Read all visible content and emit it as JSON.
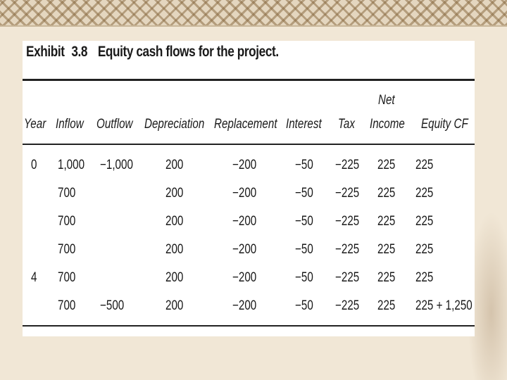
{
  "exhibit": {
    "label": "Exhibit",
    "number": "3.8",
    "title": "Equity cash flows for the project."
  },
  "table": {
    "headers": {
      "year": "Year",
      "inflow": "Inflow",
      "outflow": "Outflow",
      "depreciation": "Depreciation",
      "replacement": "Replacement",
      "interest": "Interest",
      "tax": "Tax",
      "net_top": "Net",
      "net_bottom": "Income",
      "equity_cf": "Equity CF"
    },
    "rows": [
      {
        "year": "0",
        "inflow": "1,000",
        "outflow": "−1,000",
        "depreciation": "200",
        "replacement": "−200",
        "interest": "−50",
        "tax": "−225",
        "net_income": "225",
        "equity_cf": "225"
      },
      {
        "year": "",
        "inflow": "700",
        "outflow": "",
        "depreciation": "200",
        "replacement": "−200",
        "interest": "−50",
        "tax": "−225",
        "net_income": "225",
        "equity_cf": "225"
      },
      {
        "year": "",
        "inflow": "700",
        "outflow": "",
        "depreciation": "200",
        "replacement": "−200",
        "interest": "−50",
        "tax": "−225",
        "net_income": "225",
        "equity_cf": "225"
      },
      {
        "year": "",
        "inflow": "700",
        "outflow": "",
        "depreciation": "200",
        "replacement": "−200",
        "interest": "−50",
        "tax": "−225",
        "net_income": "225",
        "equity_cf": "225"
      },
      {
        "year": "4",
        "inflow": "700",
        "outflow": "",
        "depreciation": "200",
        "replacement": "−200",
        "interest": "−50",
        "tax": "−225",
        "net_income": "225",
        "equity_cf": "225"
      },
      {
        "year": "",
        "inflow": "700",
        "outflow": "−500",
        "depreciation": "200",
        "replacement": "−200",
        "interest": "−50",
        "tax": "−225",
        "net_income": "225",
        "equity_cf": "225 + 1,250"
      }
    ]
  }
}
